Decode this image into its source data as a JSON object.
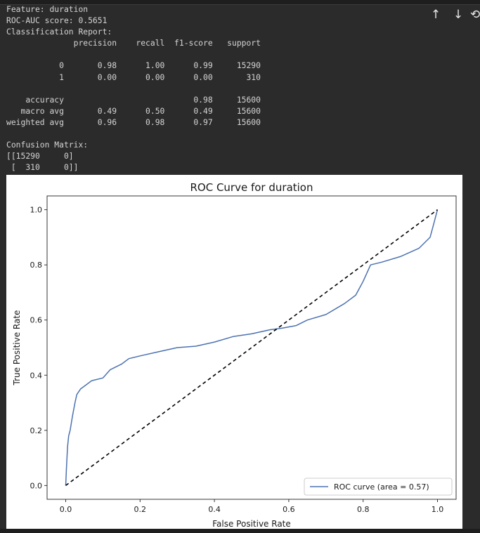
{
  "toolbar": {
    "move_up_icon": "↑",
    "move_down_icon": "↓",
    "more_icon": "⟲"
  },
  "output": {
    "lines": [
      "Feature: duration",
      "ROC-AUC score: 0.5651",
      "Classification Report:",
      "              precision    recall  f1-score   support",
      "",
      "           0       0.98      1.00      0.99     15290",
      "           1       0.00      0.00      0.00       310",
      "",
      "    accuracy                           0.98     15600",
      "   macro avg       0.49      0.50      0.49     15600",
      "weighted avg       0.96      0.98      0.97     15600",
      "",
      "Confusion Matrix:",
      "[[15290     0]",
      " [  310     0]]"
    ]
  },
  "chart_data": {
    "type": "line",
    "title": "ROC Curve for duration",
    "xlabel": "False Positive Rate",
    "ylabel": "True Positive Rate",
    "xlim": [
      -0.05,
      1.05
    ],
    "ylim": [
      -0.05,
      1.05
    ],
    "xticks": [
      "0.0",
      "0.2",
      "0.4",
      "0.6",
      "0.8",
      "1.0"
    ],
    "yticks": [
      "0.0",
      "0.2",
      "0.4",
      "0.6",
      "0.8",
      "1.0"
    ],
    "grid": false,
    "legend_position": "bottom-right",
    "series": [
      {
        "name": "ROC curve (area = 0.57)",
        "color": "#4c72b0",
        "style": "solid",
        "x": [
          0,
          0.002,
          0.005,
          0.008,
          0.012,
          0.018,
          0.025,
          0.03,
          0.04,
          0.05,
          0.07,
          0.1,
          0.12,
          0.15,
          0.17,
          0.2,
          0.25,
          0.3,
          0.35,
          0.4,
          0.45,
          0.5,
          0.55,
          0.58,
          0.62,
          0.65,
          0.7,
          0.75,
          0.78,
          0.8,
          0.82,
          0.85,
          0.9,
          0.95,
          0.98,
          0.99,
          1.0
        ],
        "y": [
          0,
          0.06,
          0.14,
          0.18,
          0.2,
          0.25,
          0.3,
          0.33,
          0.35,
          0.36,
          0.38,
          0.39,
          0.42,
          0.44,
          0.46,
          0.47,
          0.485,
          0.5,
          0.505,
          0.52,
          0.54,
          0.55,
          0.565,
          0.57,
          0.58,
          0.6,
          0.62,
          0.66,
          0.69,
          0.74,
          0.8,
          0.81,
          0.83,
          0.86,
          0.9,
          0.95,
          1.0
        ]
      },
      {
        "name": "",
        "color": "#000000",
        "style": "dashed",
        "x": [
          0,
          1
        ],
        "y": [
          0,
          1
        ]
      }
    ]
  }
}
